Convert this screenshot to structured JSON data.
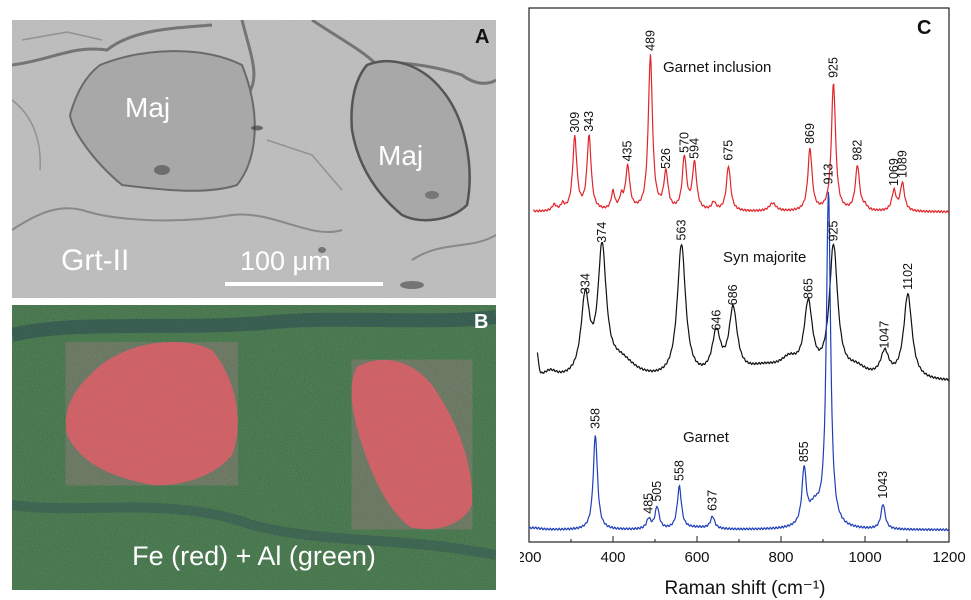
{
  "panel_a": {
    "letter": "A",
    "grain_label_1": "Maj",
    "grain_label_2": "Maj",
    "matrix_label": "Grt-II",
    "scale_label": "100 μm"
  },
  "panel_b": {
    "letter": "B",
    "caption": "Fe (red) + Al (green)",
    "colors": {
      "fe": "#d9534f",
      "al": "#3e8a3a"
    }
  },
  "chart_data": {
    "type": "line",
    "letter": "C",
    "xlabel": "Raman shift (cm⁻¹)",
    "xlim": [
      200,
      1200
    ],
    "xticks": [
      "200",
      "400",
      "600",
      "800",
      "1000",
      "1200"
    ],
    "ylabel": "",
    "series": [
      {
        "name": "Garnet inclusion",
        "color": "#e0262b",
        "peaks": [
          309,
          343,
          435,
          489,
          526,
          570,
          594,
          675,
          869,
          925,
          982,
          1069,
          1089
        ]
      },
      {
        "name": "Syn majorite",
        "color": "#111111",
        "peaks": [
          334,
          374,
          563,
          646,
          686,
          865,
          925,
          1047,
          1102
        ]
      },
      {
        "name": "Garnet",
        "color": "#1f3fb8",
        "peaks": [
          358,
          485,
          505,
          558,
          637,
          855,
          913,
          1043
        ]
      }
    ]
  }
}
